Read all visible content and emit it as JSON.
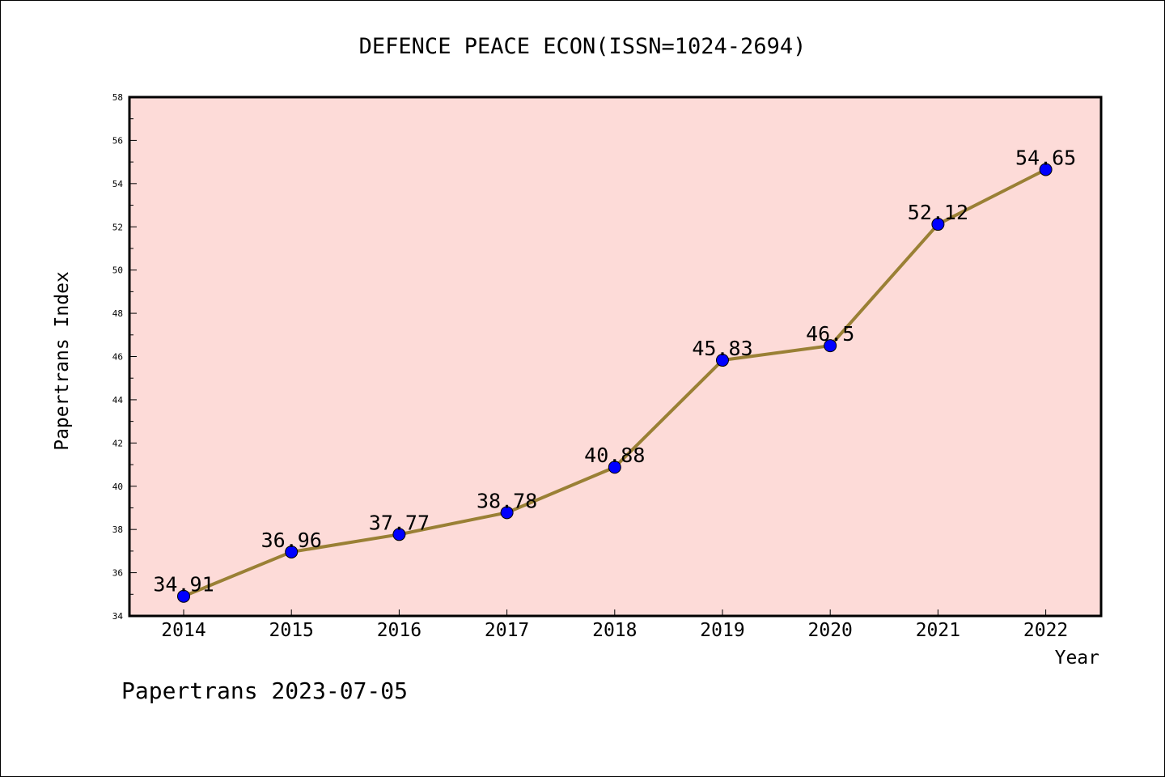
{
  "chart_data": {
    "type": "line",
    "title": "DEFENCE PEACE ECON(ISSN=1024-2694)",
    "xlabel": "Year",
    "ylabel": "Papertrans Index",
    "ylim": [
      34,
      58
    ],
    "yticks": [
      34,
      36,
      38,
      40,
      42,
      44,
      46,
      48,
      50,
      52,
      54,
      56,
      58
    ],
    "x": [
      "2014",
      "2015",
      "2016",
      "2017",
      "2018",
      "2019",
      "2020",
      "2021",
      "2022"
    ],
    "values": [
      34.91,
      36.96,
      37.77,
      38.78,
      40.88,
      45.83,
      46.5,
      52.12,
      54.65
    ],
    "value_labels": [
      "34.91",
      "36.96",
      "37.77",
      "38.78",
      "40.88",
      "45.83",
      "46.5",
      "52.12",
      "54.65"
    ],
    "grid": false,
    "background_color": "#fddbd8",
    "line_color": "#9a8035",
    "marker_color": "#0000ff"
  },
  "footer": {
    "text": "Papertrans 2023-07-05"
  }
}
